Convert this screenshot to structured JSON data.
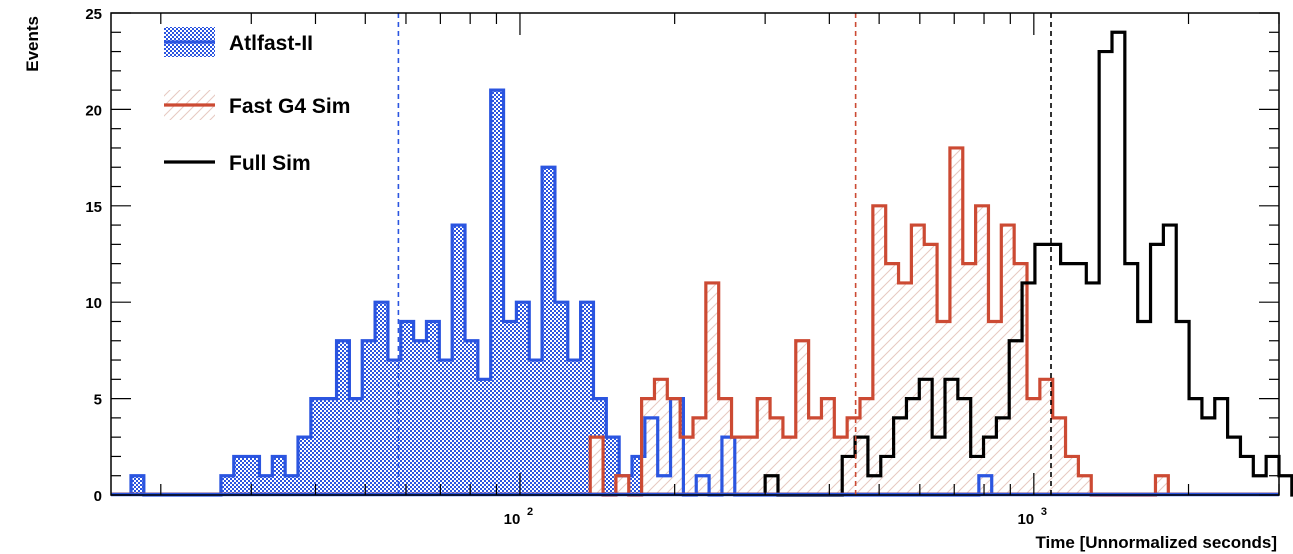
{
  "chart_data": {
    "type": "histogram",
    "title": "",
    "xlabel": "Time [Unnormalized seconds]",
    "ylabel": "Events",
    "x_scale": "log",
    "xlim": [
      16,
      3000
    ],
    "ylim": [
      0,
      25
    ],
    "bin_width_log10": 0.025,
    "y_ticks": [
      0,
      5,
      10,
      15,
      20,
      25
    ],
    "x_tick_labels": [
      {
        "value": 100,
        "base": "10",
        "exponent": "2"
      },
      {
        "value": 1000,
        "base": "10",
        "exponent": "3"
      }
    ],
    "legend": {
      "placement": "top-left"
    },
    "series": [
      {
        "name": "Atlfast-II",
        "color": "#2b55e0",
        "fill": "crosshatch",
        "x_start": 17.5,
        "counts": [
          1,
          0,
          0,
          0,
          0,
          0,
          0,
          1,
          2,
          2,
          1,
          2,
          1,
          3,
          5,
          5,
          8,
          5,
          8,
          10,
          7,
          9,
          8,
          9,
          7,
          14,
          8,
          6,
          21,
          9,
          10,
          7,
          17,
          10,
          7,
          10,
          5,
          3,
          1,
          2,
          4,
          1,
          5,
          0,
          1,
          0,
          3,
          0,
          0,
          0,
          0,
          0,
          0,
          0,
          0,
          0,
          0,
          0,
          0,
          0,
          0,
          0,
          0,
          0,
          0,
          0,
          1
        ],
        "mean": 58
      },
      {
        "name": "Fast G4 Sim",
        "color": "#cc4a33",
        "fill": "diagonal-hatch",
        "x_start": 137,
        "counts": [
          3,
          0,
          1,
          0,
          5,
          6,
          5,
          3,
          4,
          11,
          5,
          3,
          3,
          5,
          4,
          3,
          8,
          4,
          5,
          3,
          4,
          5,
          15,
          12,
          11,
          14,
          13,
          9,
          18,
          12,
          15,
          9,
          14,
          12,
          5,
          6,
          4,
          2,
          1,
          0,
          0,
          0,
          0,
          0,
          1
        ],
        "mean": 450
      },
      {
        "name": "Full Sim",
        "color": "#000000",
        "fill": "none",
        "x_start": 300,
        "counts": [
          1,
          0,
          0,
          0,
          0,
          0,
          2,
          3,
          1,
          2,
          4,
          5,
          6,
          3,
          6,
          5,
          2,
          3,
          4,
          8,
          11,
          13,
          13,
          12,
          12,
          11,
          23,
          24,
          12,
          9,
          13,
          14,
          9,
          5,
          4,
          5,
          3,
          2,
          1,
          2,
          1,
          0,
          0,
          0,
          0,
          1,
          0
        ],
        "mean": 1080
      }
    ]
  }
}
